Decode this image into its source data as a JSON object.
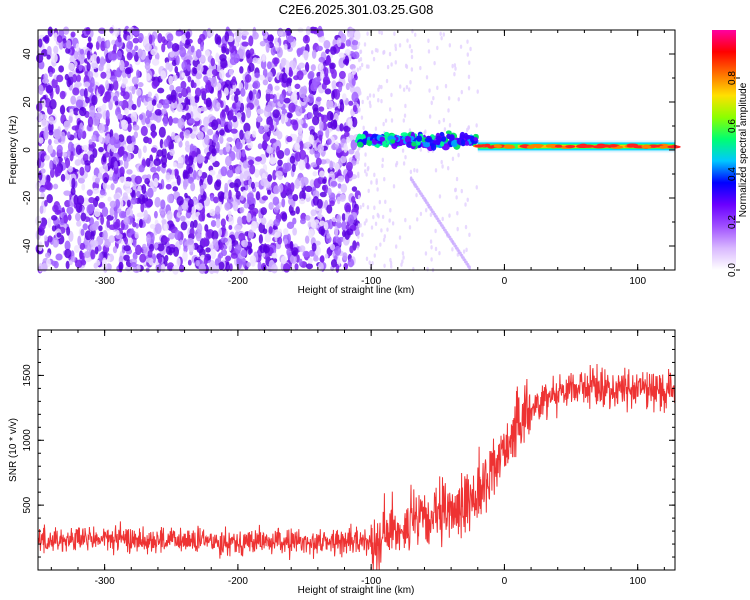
{
  "title": "C2E6.2025.301.03.25.G08",
  "chart_data": [
    {
      "type": "heatmap",
      "xlabel": "Height of straight line (km)",
      "ylabel": "Frequency (Hz)",
      "xlim": [
        -350,
        128
      ],
      "ylim": [
        -50,
        50
      ],
      "xticks": [
        -300,
        -200,
        -100,
        0,
        100
      ],
      "yticks": [
        -40,
        -20,
        0,
        20,
        40
      ],
      "colorbar": {
        "label": "Normalized spectral amplitude",
        "range": [
          0,
          1
        ],
        "ticks": [
          0.0,
          0.2,
          0.4,
          0.6,
          0.8
        ],
        "colors": [
          "#ffffff",
          "#d9b8ff",
          "#a050ff",
          "#6a00ff",
          "#0000ff",
          "#00c8ff",
          "#00ff70",
          "#8cff00",
          "#ffe000",
          "#ff7000",
          "#ff0000",
          "#ff00a0"
        ]
      },
      "regions": [
        {
          "name": "noise",
          "x_range": [
            -350,
            -110
          ],
          "amplitude": 0.12
        },
        {
          "name": "signal-onset",
          "x_range": [
            -110,
            -20
          ],
          "freq_hz": 4,
          "amplitude": 0.5
        },
        {
          "name": "carrier",
          "x_range": [
            -20,
            128
          ],
          "freq_hz": 1.5,
          "amplitude": 0.9
        }
      ]
    },
    {
      "type": "line",
      "xlabel": "Height of straight line (km)",
      "ylabel": "SNR (10 * v/v)",
      "xlim": [
        -350,
        128
      ],
      "ylim": [
        0,
        1850
      ],
      "xticks": [
        -300,
        -200,
        -100,
        0,
        100
      ],
      "yticks": [
        500,
        1000,
        1500
      ],
      "color": "#ee3333",
      "series": [
        {
          "name": "SNR",
          "x": [
            -350,
            -300,
            -250,
            -200,
            -150,
            -100,
            -80,
            -50,
            -30,
            -15,
            0,
            20,
            40,
            60,
            80,
            100,
            128
          ],
          "values": [
            230,
            240,
            225,
            220,
            215,
            220,
            330,
            400,
            500,
            650,
            950,
            1250,
            1380,
            1420,
            1390,
            1400,
            1380
          ]
        }
      ]
    }
  ]
}
